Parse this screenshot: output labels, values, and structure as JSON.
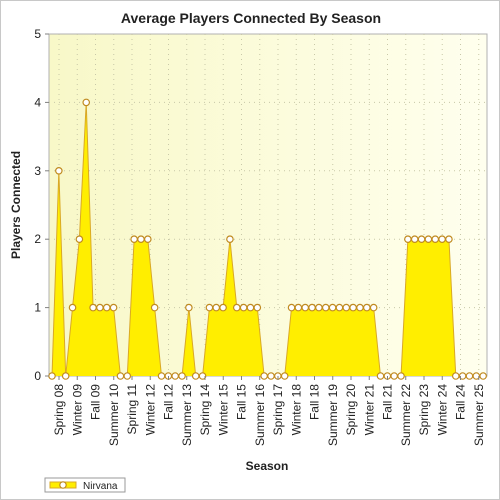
{
  "chart_data": {
    "type": "area",
    "title": "Average Players Connected By Season",
    "xlabel": "Season",
    "ylabel": "Players Connected",
    "ylim": [
      0,
      5
    ],
    "y_ticks": [
      "0",
      "1",
      "2",
      "3",
      "4",
      "5"
    ],
    "grid": true,
    "legend_placement": "bottom-left",
    "x_tick_labels": [
      "Spring 08",
      "Winter 09",
      "Fall 09",
      "Summer 10",
      "Spring 11",
      "Winter 12",
      "Fall 12",
      "Summer 13",
      "Spring 14",
      "Winter 15",
      "Fall 15",
      "Summer 16",
      "Spring 17",
      "Winter 18",
      "Fall 18",
      "Summer 19",
      "Spring 20",
      "Winter 21",
      "Fall 21",
      "Summer 22",
      "Spring 23",
      "Winter 24",
      "Fall 24",
      "Summer 25"
    ],
    "series": [
      {
        "name": "Nirvana",
        "color": "#ffee00",
        "stroke": "#d9a826",
        "values": [
          0,
          3,
          0,
          1,
          2,
          4,
          1,
          1,
          1,
          1,
          0,
          0,
          2,
          2,
          2,
          1,
          0,
          0,
          0,
          0,
          1,
          0,
          0,
          1,
          1,
          1,
          2,
          1,
          1,
          1,
          1,
          0,
          0,
          0,
          0,
          1,
          1,
          1,
          1,
          1,
          1,
          1,
          1,
          1,
          1,
          1,
          1,
          1,
          0,
          0,
          0,
          0,
          2,
          2,
          2,
          2,
          2,
          2,
          2,
          0,
          0,
          0,
          0,
          0
        ]
      }
    ]
  }
}
